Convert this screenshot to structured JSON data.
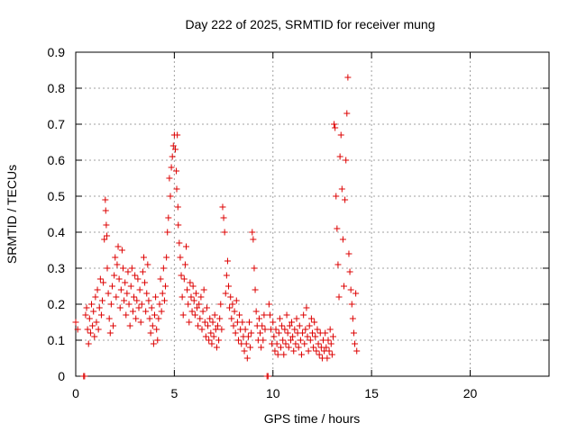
{
  "chart_data": {
    "type": "scatter",
    "title": "Day 222 of 2025, SRMTID for receiver mung",
    "xlabel": "GPS time / hours",
    "ylabel": "SRMTID / TECUs",
    "xlim": [
      0,
      24
    ],
    "ylim": [
      0,
      0.9
    ],
    "xticks": [
      "0",
      "5",
      "10",
      "15",
      "20"
    ],
    "yticks": [
      "0",
      "0.1",
      "0.2",
      "0.3",
      "0.4",
      "0.5",
      "0.6",
      "0.7",
      "0.8",
      "0.9"
    ],
    "grid": true,
    "marker": "plus",
    "series": [
      {
        "name": "SRMTID",
        "color": "#dd0000",
        "points": [
          [
            0.0,
            0.15
          ],
          [
            0.1,
            0.13
          ],
          [
            0.4,
            0.0
          ],
          [
            0.45,
            0.0
          ],
          [
            0.5,
            0.17
          ],
          [
            0.55,
            0.19
          ],
          [
            0.6,
            0.13
          ],
          [
            0.65,
            0.09
          ],
          [
            0.7,
            0.16
          ],
          [
            0.75,
            0.12
          ],
          [
            0.8,
            0.2
          ],
          [
            0.85,
            0.14
          ],
          [
            0.9,
            0.18
          ],
          [
            0.95,
            0.11
          ],
          [
            1.0,
            0.22
          ],
          [
            1.05,
            0.15
          ],
          [
            1.1,
            0.24
          ],
          [
            1.15,
            0.13
          ],
          [
            1.2,
            0.19
          ],
          [
            1.25,
            0.27
          ],
          [
            1.3,
            0.17
          ],
          [
            1.35,
            0.21
          ],
          [
            1.4,
            0.26
          ],
          [
            1.45,
            0.38
          ],
          [
            1.5,
            0.49
          ],
          [
            1.52,
            0.46
          ],
          [
            1.55,
            0.42
          ],
          [
            1.58,
            0.39
          ],
          [
            1.6,
            0.3
          ],
          [
            1.65,
            0.23
          ],
          [
            1.7,
            0.16
          ],
          [
            1.75,
            0.12
          ],
          [
            1.8,
            0.2
          ],
          [
            1.85,
            0.25
          ],
          [
            1.9,
            0.14
          ],
          [
            1.95,
            0.28
          ],
          [
            2.0,
            0.33
          ],
          [
            2.05,
            0.22
          ],
          [
            2.1,
            0.31
          ],
          [
            2.15,
            0.36
          ],
          [
            2.2,
            0.27
          ],
          [
            2.25,
            0.19
          ],
          [
            2.3,
            0.24
          ],
          [
            2.35,
            0.35
          ],
          [
            2.4,
            0.3
          ],
          [
            2.45,
            0.21
          ],
          [
            2.5,
            0.26
          ],
          [
            2.55,
            0.17
          ],
          [
            2.6,
            0.23
          ],
          [
            2.65,
            0.29
          ],
          [
            2.7,
            0.2
          ],
          [
            2.75,
            0.14
          ],
          [
            2.8,
            0.25
          ],
          [
            2.85,
            0.3
          ],
          [
            2.9,
            0.18
          ],
          [
            2.95,
            0.22
          ],
          [
            3.0,
            0.28
          ],
          [
            3.05,
            0.16
          ],
          [
            3.1,
            0.21
          ],
          [
            3.15,
            0.27
          ],
          [
            3.2,
            0.19
          ],
          [
            3.25,
            0.24
          ],
          [
            3.3,
            0.15
          ],
          [
            3.35,
            0.2
          ],
          [
            3.4,
            0.29
          ],
          [
            3.45,
            0.33
          ],
          [
            3.5,
            0.26
          ],
          [
            3.55,
            0.18
          ],
          [
            3.6,
            0.23
          ],
          [
            3.65,
            0.31
          ],
          [
            3.7,
            0.21
          ],
          [
            3.75,
            0.16
          ],
          [
            3.8,
            0.12
          ],
          [
            3.85,
            0.19
          ],
          [
            3.9,
            0.14
          ],
          [
            3.95,
            0.09
          ],
          [
            4.0,
            0.17
          ],
          [
            4.05,
            0.22
          ],
          [
            4.1,
            0.13
          ],
          [
            4.15,
            0.1
          ],
          [
            4.2,
            0.16
          ],
          [
            4.25,
            0.2
          ],
          [
            4.3,
            0.27
          ],
          [
            4.35,
            0.18
          ],
          [
            4.4,
            0.23
          ],
          [
            4.45,
            0.3
          ],
          [
            4.5,
            0.21
          ],
          [
            4.55,
            0.25
          ],
          [
            4.6,
            0.33
          ],
          [
            4.65,
            0.4
          ],
          [
            4.7,
            0.44
          ],
          [
            4.75,
            0.55
          ],
          [
            4.8,
            0.5
          ],
          [
            4.85,
            0.58
          ],
          [
            4.9,
            0.61
          ],
          [
            4.95,
            0.64
          ],
          [
            5.0,
            0.67
          ],
          [
            5.05,
            0.63
          ],
          [
            5.1,
            0.57
          ],
          [
            5.12,
            0.52
          ],
          [
            5.15,
            0.67
          ],
          [
            5.18,
            0.47
          ],
          [
            5.2,
            0.42
          ],
          [
            5.25,
            0.37
          ],
          [
            5.3,
            0.33
          ],
          [
            5.35,
            0.28
          ],
          [
            5.4,
            0.22
          ],
          [
            5.45,
            0.17
          ],
          [
            5.5,
            0.27
          ],
          [
            5.55,
            0.31
          ],
          [
            5.6,
            0.36
          ],
          [
            5.65,
            0.24
          ],
          [
            5.7,
            0.2
          ],
          [
            5.75,
            0.15
          ],
          [
            5.8,
            0.26
          ],
          [
            5.85,
            0.22
          ],
          [
            5.9,
            0.18
          ],
          [
            5.95,
            0.25
          ],
          [
            6.0,
            0.21
          ],
          [
            6.05,
            0.17
          ],
          [
            6.1,
            0.23
          ],
          [
            6.15,
            0.19
          ],
          [
            6.2,
            0.14
          ],
          [
            6.25,
            0.2
          ],
          [
            6.3,
            0.16
          ],
          [
            6.35,
            0.22
          ],
          [
            6.4,
            0.13
          ],
          [
            6.45,
            0.18
          ],
          [
            6.5,
            0.24
          ],
          [
            6.55,
            0.15
          ],
          [
            6.6,
            0.11
          ],
          [
            6.65,
            0.19
          ],
          [
            6.7,
            0.14
          ],
          [
            6.75,
            0.1
          ],
          [
            6.8,
            0.16
          ],
          [
            6.85,
            0.12
          ],
          [
            6.9,
            0.09
          ],
          [
            6.95,
            0.15
          ],
          [
            7.0,
            0.11
          ],
          [
            7.05,
            0.17
          ],
          [
            7.1,
            0.13
          ],
          [
            7.15,
            0.08
          ],
          [
            7.2,
            0.14
          ],
          [
            7.25,
            0.1
          ],
          [
            7.3,
            0.16
          ],
          [
            7.35,
            0.2
          ],
          [
            7.4,
            0.13
          ],
          [
            7.45,
            0.47
          ],
          [
            7.5,
            0.44
          ],
          [
            7.55,
            0.4
          ],
          [
            7.6,
            0.23
          ],
          [
            7.65,
            0.28
          ],
          [
            7.7,
            0.32
          ],
          [
            7.75,
            0.25
          ],
          [
            7.8,
            0.19
          ],
          [
            7.85,
            0.22
          ],
          [
            7.9,
            0.16
          ],
          [
            7.95,
            0.2
          ],
          [
            8.0,
            0.14
          ],
          [
            8.05,
            0.18
          ],
          [
            8.1,
            0.12
          ],
          [
            8.15,
            0.21
          ],
          [
            8.2,
            0.15
          ],
          [
            8.25,
            0.1
          ],
          [
            8.3,
            0.17
          ],
          [
            8.35,
            0.13
          ],
          [
            8.4,
            0.09
          ],
          [
            8.45,
            0.15
          ],
          [
            8.5,
            0.11
          ],
          [
            8.55,
            0.07
          ],
          [
            8.6,
            0.13
          ],
          [
            8.65,
            0.09
          ],
          [
            8.7,
            0.05
          ],
          [
            8.75,
            0.11
          ],
          [
            8.8,
            0.15
          ],
          [
            8.85,
            0.08
          ],
          [
            8.9,
            0.12
          ],
          [
            8.95,
            0.4
          ],
          [
            9.0,
            0.38
          ],
          [
            9.05,
            0.3
          ],
          [
            9.1,
            0.24
          ],
          [
            9.15,
            0.18
          ],
          [
            9.2,
            0.14
          ],
          [
            9.25,
            0.1
          ],
          [
            9.3,
            0.16
          ],
          [
            9.35,
            0.12
          ],
          [
            9.4,
            0.08
          ],
          [
            9.45,
            0.14
          ],
          [
            9.5,
            0.1
          ],
          [
            9.55,
            0.17
          ],
          [
            9.6,
            0.13
          ],
          [
            9.7,
            0.0
          ],
          [
            9.75,
            0.0
          ],
          [
            9.8,
            0.2
          ],
          [
            9.85,
            0.17
          ],
          [
            9.9,
            0.13
          ],
          [
            9.95,
            0.09
          ],
          [
            10.0,
            0.15
          ],
          [
            10.05,
            0.11
          ],
          [
            10.1,
            0.07
          ],
          [
            10.15,
            0.13
          ],
          [
            10.2,
            0.09
          ],
          [
            10.25,
            0.06
          ],
          [
            10.3,
            0.12
          ],
          [
            10.35,
            0.16
          ],
          [
            10.4,
            0.08
          ],
          [
            10.45,
            0.14
          ],
          [
            10.5,
            0.1
          ],
          [
            10.55,
            0.06
          ],
          [
            10.6,
            0.13
          ],
          [
            10.65,
            0.09
          ],
          [
            10.7,
            0.17
          ],
          [
            10.75,
            0.12
          ],
          [
            10.8,
            0.08
          ],
          [
            10.85,
            0.14
          ],
          [
            10.9,
            0.1
          ],
          [
            10.95,
            0.15
          ],
          [
            11.0,
            0.11
          ],
          [
            11.05,
            0.07
          ],
          [
            11.1,
            0.13
          ],
          [
            11.15,
            0.09
          ],
          [
            11.2,
            0.16
          ],
          [
            11.25,
            0.12
          ],
          [
            11.3,
            0.08
          ],
          [
            11.35,
            0.14
          ],
          [
            11.4,
            0.1
          ],
          [
            11.45,
            0.06
          ],
          [
            11.5,
            0.12
          ],
          [
            11.55,
            0.17
          ],
          [
            11.6,
            0.09
          ],
          [
            11.65,
            0.13
          ],
          [
            11.7,
            0.19
          ],
          [
            11.75,
            0.11
          ],
          [
            11.8,
            0.07
          ],
          [
            11.85,
            0.14
          ],
          [
            11.9,
            0.1
          ],
          [
            11.95,
            0.16
          ],
          [
            12.0,
            0.12
          ],
          [
            12.05,
            0.08
          ],
          [
            12.1,
            0.15
          ],
          [
            12.15,
            0.11
          ],
          [
            12.2,
            0.07
          ],
          [
            12.25,
            0.13
          ],
          [
            12.3,
            0.09
          ],
          [
            12.35,
            0.06
          ],
          [
            12.4,
            0.12
          ],
          [
            12.45,
            0.08
          ],
          [
            12.5,
            0.05
          ],
          [
            12.55,
            0.1
          ],
          [
            12.6,
            0.07
          ],
          [
            12.65,
            0.12
          ],
          [
            12.7,
            0.08
          ],
          [
            12.75,
            0.05
          ],
          [
            12.8,
            0.1
          ],
          [
            12.85,
            0.07
          ],
          [
            12.9,
            0.13
          ],
          [
            12.95,
            0.09
          ],
          [
            13.0,
            0.06
          ],
          [
            13.05,
            0.11
          ],
          [
            13.1,
            0.7
          ],
          [
            13.15,
            0.69
          ],
          [
            13.2,
            0.5
          ],
          [
            13.25,
            0.41
          ],
          [
            13.3,
            0.31
          ],
          [
            13.35,
            0.22
          ],
          [
            13.4,
            0.61
          ],
          [
            13.45,
            0.67
          ],
          [
            13.5,
            0.52
          ],
          [
            13.55,
            0.38
          ],
          [
            13.6,
            0.25
          ],
          [
            13.65,
            0.49
          ],
          [
            13.7,
            0.6
          ],
          [
            13.75,
            0.73
          ],
          [
            13.8,
            0.83
          ],
          [
            13.85,
            0.34
          ],
          [
            13.9,
            0.29
          ],
          [
            13.95,
            0.24
          ],
          [
            14.0,
            0.2
          ],
          [
            14.05,
            0.16
          ],
          [
            14.1,
            0.12
          ],
          [
            14.15,
            0.09
          ],
          [
            14.2,
            0.23
          ],
          [
            14.25,
            0.07
          ]
        ]
      }
    ]
  }
}
